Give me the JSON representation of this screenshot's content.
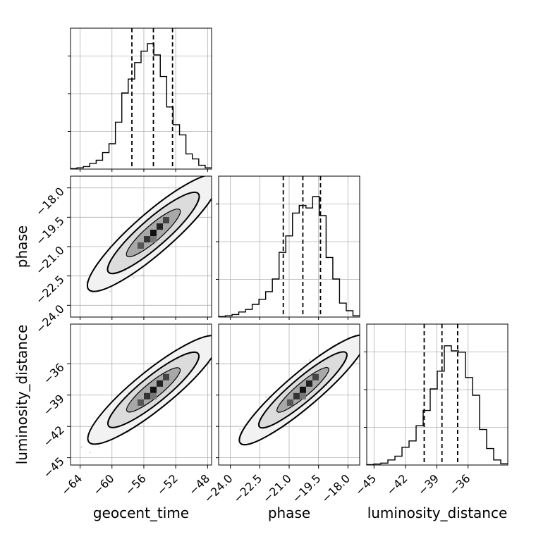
{
  "chart_data": {
    "type": "corner",
    "parameters": [
      "geocent_time",
      "phase",
      "luminosity_distance"
    ],
    "axis_labels": {
      "geocent_time": "geocent_time",
      "phase": "phase",
      "luminosity_distance": "luminosity_distance"
    },
    "ranges": {
      "geocent_time": [
        -65.2,
        -47.5
      ],
      "phase": [
        -24.6,
        -17.4
      ],
      "luminosity_distance": [
        -45.7,
        -32.2
      ]
    },
    "ticks": {
      "geocent_time": [
        -64,
        -60,
        -56,
        -52,
        -48
      ],
      "phase": [
        -24.0,
        -22.5,
        -21.0,
        -19.5,
        -18.0
      ],
      "luminosity_distance": [
        -45,
        -42,
        -39,
        -36
      ]
    },
    "tick_labels": {
      "geocent_time": [
        "−64",
        "−60",
        "−56",
        "−52",
        "−48"
      ],
      "phase": [
        "−24.0",
        "−22.5",
        "−21.0",
        "−19.5",
        "−18.0"
      ],
      "luminosity_distance": [
        "−45",
        "−42",
        "−39",
        "−36"
      ]
    },
    "quantiles": {
      "geocent_time": [
        -57.5,
        -54.8,
        -52.4
      ],
      "phase": [
        -21.3,
        -20.3,
        -19.4
      ],
      "luminosity_distance": [
        -40.2,
        -38.5,
        -37.0
      ]
    },
    "histograms": {
      "geocent_time": [
        0.004,
        0.01,
        0.02,
        0.045,
        0.07,
        0.13,
        0.2,
        0.37,
        0.6,
        0.71,
        0.84,
        0.93,
        0.99,
        0.9,
        0.73,
        0.49,
        0.35,
        0.27,
        0.12,
        0.08,
        0.03,
        0.01
      ],
      "phase": [
        0.004,
        0.01,
        0.02,
        0.04,
        0.06,
        0.1,
        0.14,
        0.2,
        0.3,
        0.51,
        0.64,
        0.82,
        0.88,
        0.86,
        0.95,
        0.8,
        0.47,
        0.3,
        0.11,
        0.05,
        0.01
      ],
      "luminosity_distance": [
        0.003,
        0.008,
        0.015,
        0.04,
        0.07,
        0.14,
        0.19,
        0.31,
        0.43,
        0.6,
        0.74,
        0.94,
        0.9,
        0.89,
        0.69,
        0.55,
        0.28,
        0.13,
        0.04,
        0.01
      ]
    },
    "correlations": {
      "phase|geocent_time": 0.9,
      "luminosity_distance|geocent_time": 0.9,
      "luminosity_distance|phase": 0.92
    },
    "sigma": {
      "geocent_time": 2.4,
      "phase": 0.95,
      "luminosity_distance": 1.65
    },
    "grid": true
  }
}
